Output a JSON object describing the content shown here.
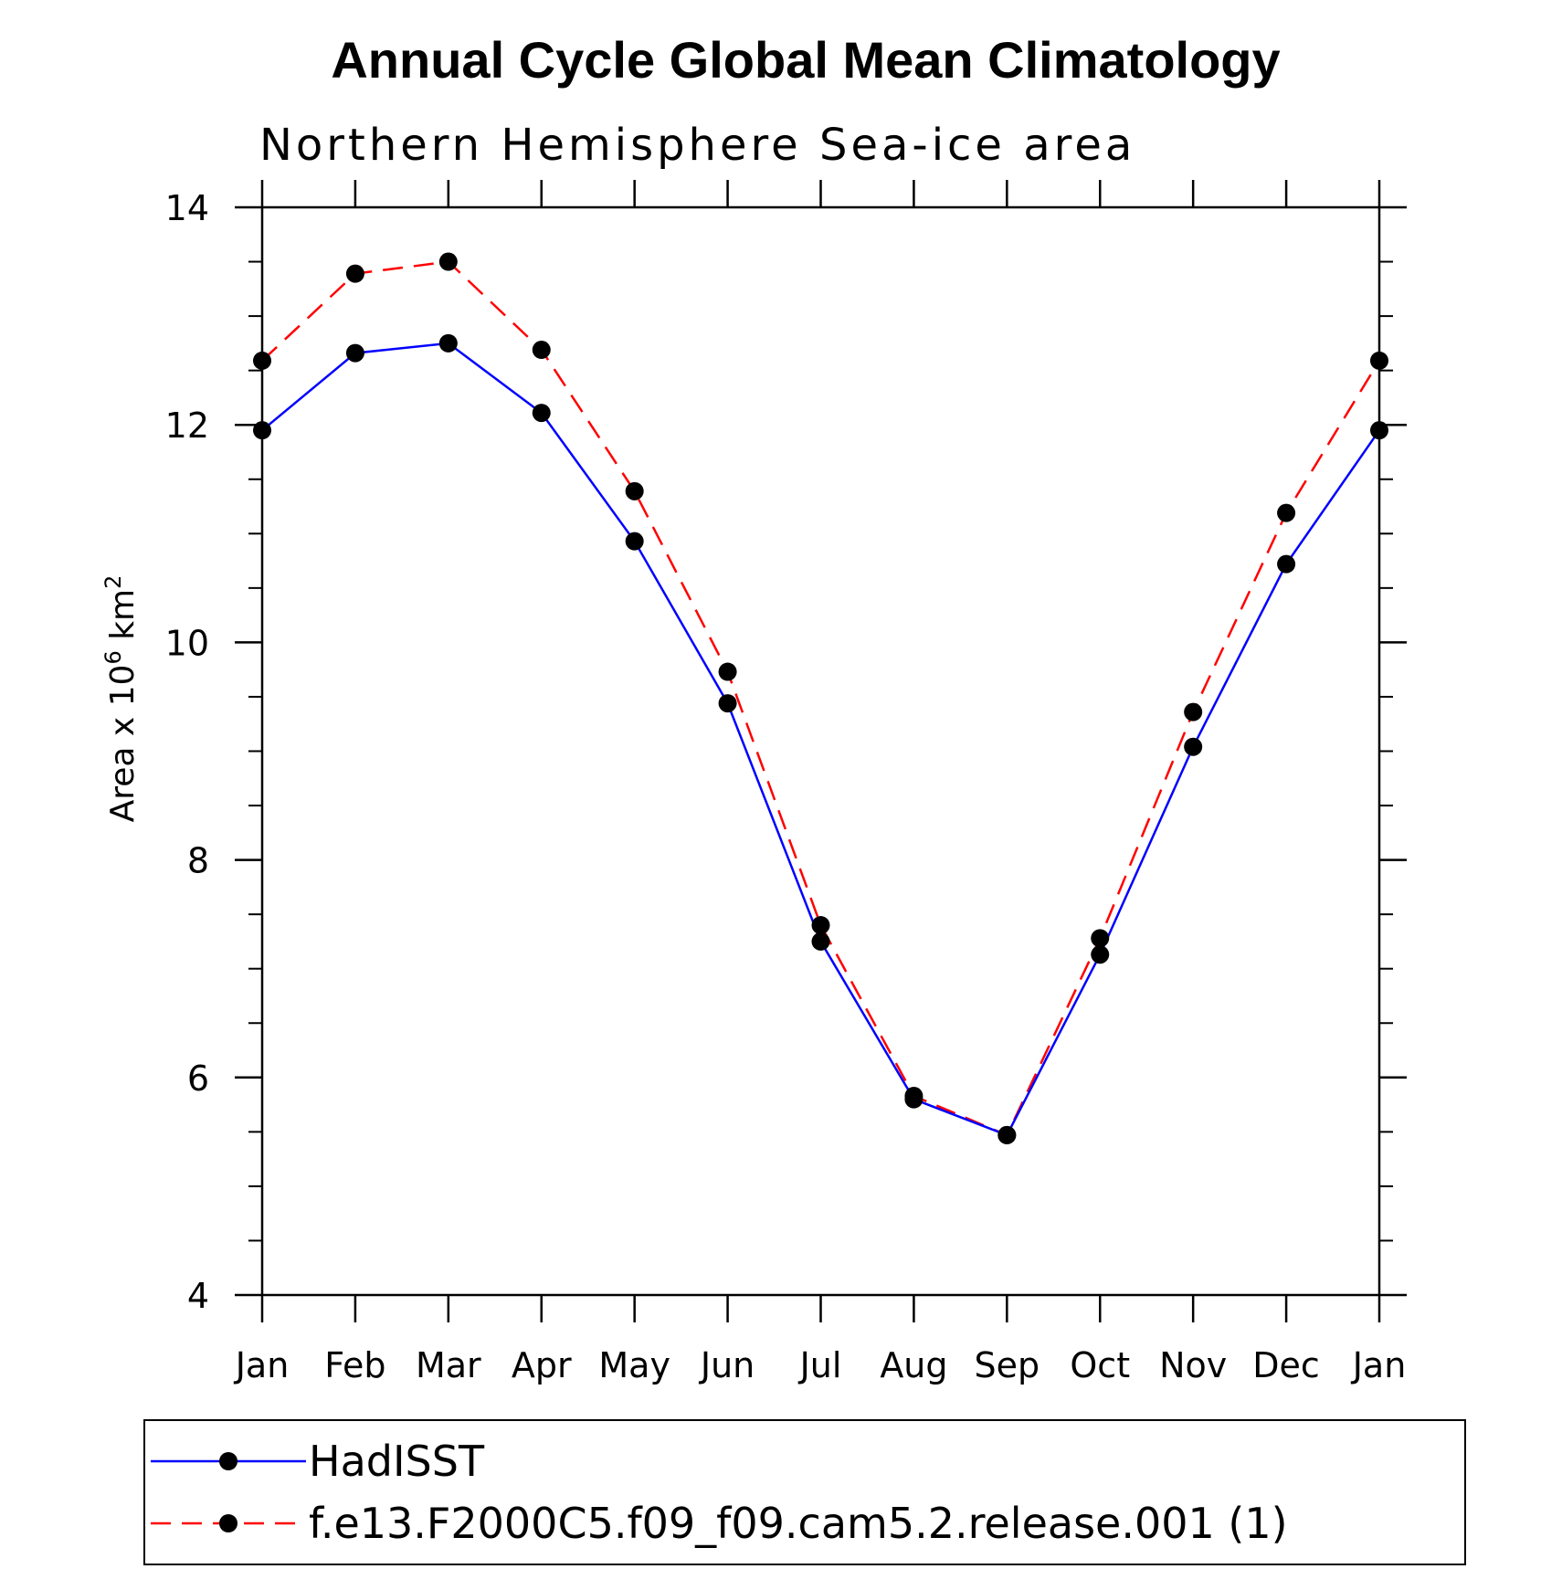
{
  "chart_data": {
    "type": "line",
    "title": "Annual Cycle Global Mean Climatology",
    "subtitle": "Northern Hemisphere Sea-ice area",
    "ylabel_prefix": "Area x 10",
    "ylabel_exp": "6",
    "ylabel_unit": " km",
    "ylabel_unit_exp": "2",
    "xlabel": "",
    "ylim": [
      4,
      14
    ],
    "yticks": [
      4,
      6,
      8,
      10,
      12,
      14
    ],
    "categories": [
      "Jan",
      "Feb",
      "Mar",
      "Apr",
      "May",
      "Jun",
      "Jul",
      "Aug",
      "Sep",
      "Oct",
      "Nov",
      "Dec",
      "Jan"
    ],
    "series": [
      {
        "name": "HadISST",
        "color": "#0000ff",
        "dash": "solid",
        "marker": "filled-circle",
        "values": [
          11.95,
          12.66,
          12.75,
          12.11,
          10.93,
          9.44,
          7.25,
          5.8,
          5.47,
          7.13,
          9.04,
          10.72,
          11.95
        ]
      },
      {
        "name": "f.e13.F2000C5.f09_f09.cam5.2.release.001 (1)",
        "color": "#ff0000",
        "dash": "dashed",
        "marker": "filled-circle",
        "values": [
          12.59,
          13.39,
          13.5,
          12.69,
          11.39,
          9.73,
          7.4,
          5.83,
          5.47,
          7.28,
          9.36,
          11.19,
          12.59
        ]
      }
    ],
    "legend_position": "bottom"
  }
}
